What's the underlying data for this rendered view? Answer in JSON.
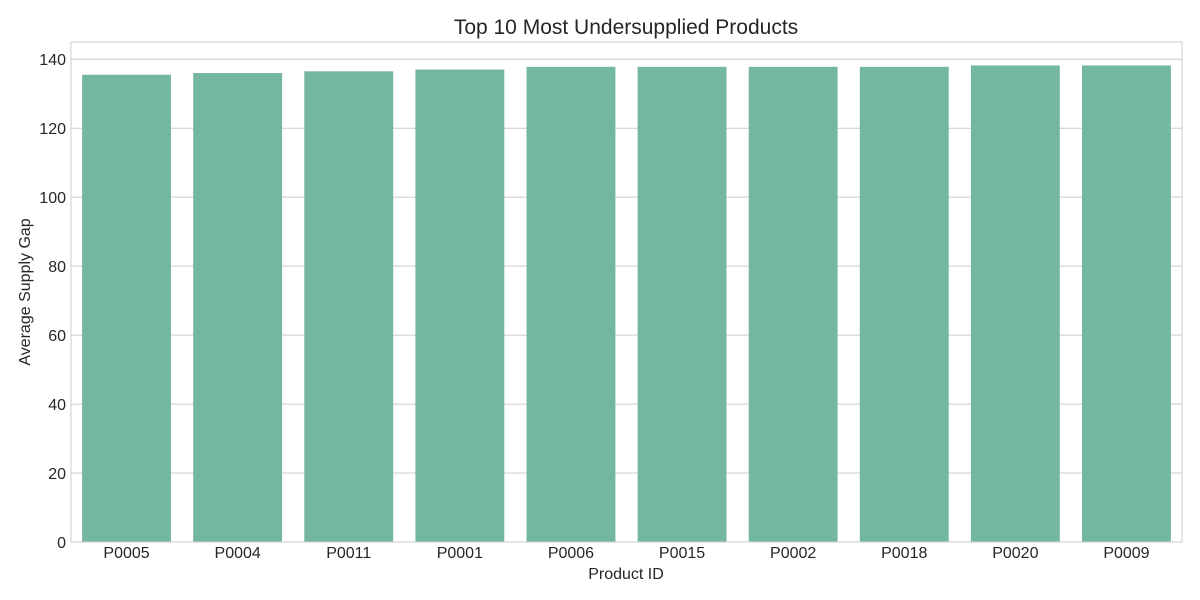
{
  "chart_data": {
    "type": "bar",
    "title": "Top 10 Most Undersupplied Products",
    "xlabel": "Product ID",
    "ylabel": "Average Supply Gap",
    "categories": [
      "P0005",
      "P0004",
      "P0011",
      "P0001",
      "P0006",
      "P0015",
      "P0002",
      "P0018",
      "P0020",
      "P0009"
    ],
    "values": [
      135.5,
      136.0,
      136.5,
      137.0,
      137.8,
      137.8,
      137.8,
      137.8,
      138.2,
      138.2
    ],
    "ylim": [
      0,
      145
    ],
    "yticks": [
      0,
      20,
      40,
      60,
      80,
      100,
      120,
      140
    ],
    "grid": true,
    "bar_color": "#73b6a1",
    "grid_color": "#cccccc"
  }
}
